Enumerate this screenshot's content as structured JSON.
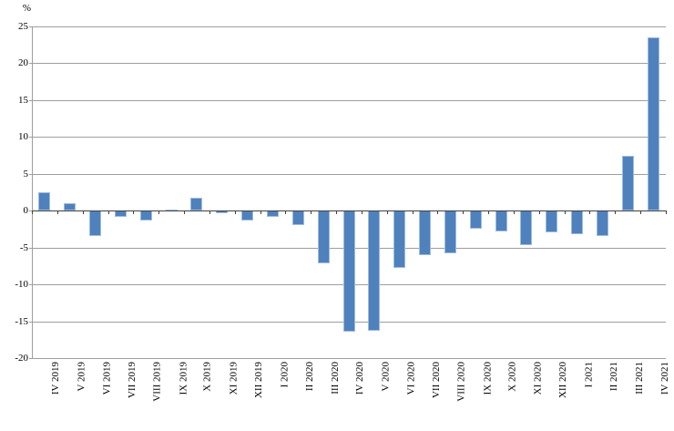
{
  "chart_data": {
    "type": "bar",
    "title": "",
    "xlabel": "",
    "ylabel": "%",
    "categories": [
      "IV 2019",
      "V 2019",
      "VI 2019",
      "VII 2019",
      "VIII 2019",
      "IX 2019",
      "X 2019",
      "XI 2019",
      "XII 2019",
      "I 2020",
      "II 2020",
      "III 2020",
      "IV 2020",
      "V 2020",
      "VI 2020",
      "VII 2020",
      "VIII 2020",
      "IX 2020",
      "X 2020",
      "XI 2020",
      "XII 2020",
      "I 2021",
      "II 2021",
      "III 2021",
      "IV 2021"
    ],
    "values": [
      2.5,
      1.0,
      -3.4,
      -0.9,
      -1.3,
      0.1,
      1.7,
      -0.4,
      -1.4,
      -0.9,
      -2.0,
      -7.2,
      -16.5,
      -16.3,
      -7.8,
      -6.0,
      -5.8,
      -2.5,
      -2.8,
      -4.7,
      -3.0,
      -3.2,
      -3.4,
      7.4,
      23.5
    ],
    "ylim": [
      -20,
      25
    ],
    "ytick_step": 5,
    "y_tick_labels": [
      "25",
      "20",
      "15",
      "10",
      "5",
      "0",
      "-5",
      "-10",
      "-15",
      "-20"
    ],
    "grid": true,
    "legend": false,
    "colors": {
      "bar_fill": "#4F81BD",
      "bar_border": "#9FBCDD",
      "gridline": "#9E9E9E",
      "axis": "#404040",
      "text": "#000000"
    }
  }
}
